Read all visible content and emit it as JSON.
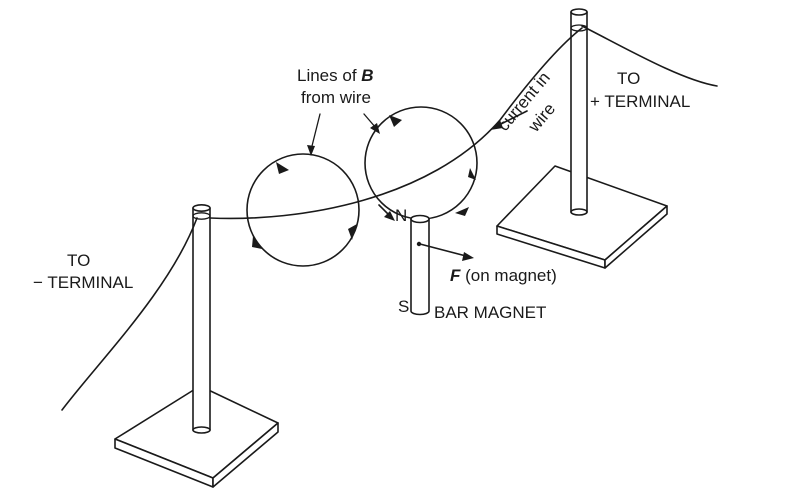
{
  "labels": {
    "lines_of_b_prefix": "Lines of ",
    "lines_of_b_symbol": "B",
    "from_wire": "from wire",
    "current_in": "current in",
    "wire": "wire",
    "to_plus_1": "TO",
    "to_plus_2": "+ TERMINAL",
    "to_minus_1": "TO",
    "to_minus_2": "− TERMINAL",
    "north": "N",
    "south": "S",
    "force_symbol": "F",
    "force_text": " (on magnet)",
    "bar_magnet": "BAR MAGNET"
  }
}
